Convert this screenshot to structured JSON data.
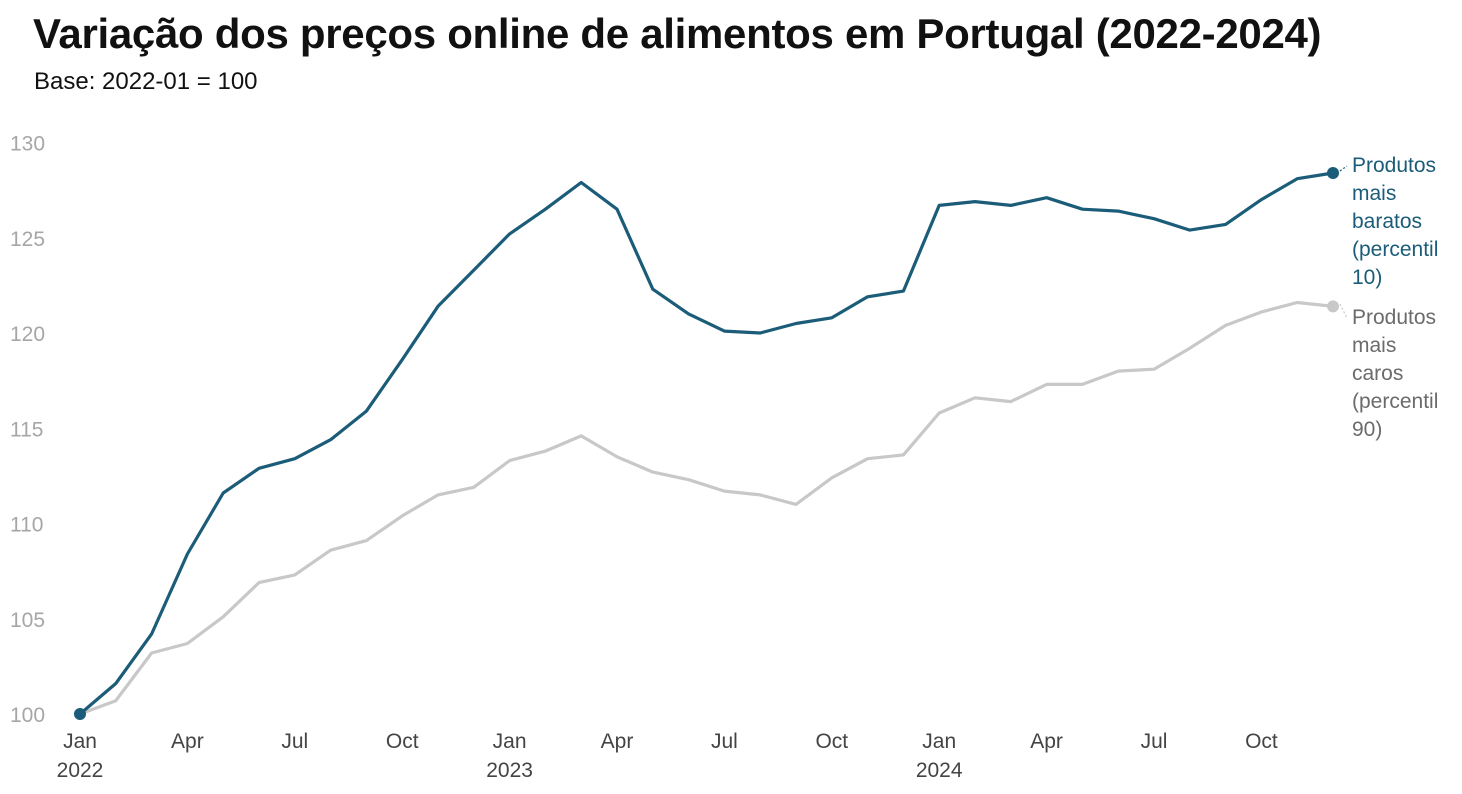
{
  "chart_data": {
    "type": "line",
    "title": "Variação dos preços online de alimentos em Portugal (2022-2024)",
    "subtitle": "Base: 2022-01 = 100",
    "xlabel": "",
    "ylabel": "",
    "ylim": [
      100,
      130
    ],
    "yticks": [
      "100",
      "105",
      "110",
      "115",
      "120",
      "125",
      "130"
    ],
    "x": [
      "2022-01",
      "2022-02",
      "2022-03",
      "2022-04",
      "2022-05",
      "2022-06",
      "2022-07",
      "2022-08",
      "2022-09",
      "2022-10",
      "2022-11",
      "2022-12",
      "2023-01",
      "2023-02",
      "2023-03",
      "2023-04",
      "2023-05",
      "2023-06",
      "2023-07",
      "2023-08",
      "2023-09",
      "2023-10",
      "2023-11",
      "2023-12",
      "2024-01",
      "2024-02",
      "2024-03",
      "2024-04",
      "2024-05",
      "2024-06",
      "2024-07",
      "2024-08",
      "2024-09",
      "2024-10",
      "2024-11",
      "2024-12"
    ],
    "xticks": [
      {
        "index": 0,
        "month": "Jan",
        "year": "2022"
      },
      {
        "index": 3,
        "month": "Apr",
        "year": ""
      },
      {
        "index": 6,
        "month": "Jul",
        "year": ""
      },
      {
        "index": 9,
        "month": "Oct",
        "year": ""
      },
      {
        "index": 12,
        "month": "Jan",
        "year": "2023"
      },
      {
        "index": 15,
        "month": "Apr",
        "year": ""
      },
      {
        "index": 18,
        "month": "Jul",
        "year": ""
      },
      {
        "index": 21,
        "month": "Oct",
        "year": ""
      },
      {
        "index": 24,
        "month": "Jan",
        "year": "2024"
      },
      {
        "index": 27,
        "month": "Apr",
        "year": ""
      },
      {
        "index": 30,
        "month": "Jul",
        "year": ""
      },
      {
        "index": 33,
        "month": "Oct",
        "year": ""
      }
    ],
    "series": [
      {
        "name": "Produtos mais caros (percentil 90)",
        "label_lines": [
          "Produtos",
          "mais",
          "caros",
          "(percentil",
          "90)"
        ],
        "color": "#c8c8c8",
        "values": [
          100.0,
          100.7,
          103.2,
          103.7,
          105.1,
          106.9,
          107.3,
          108.6,
          109.1,
          110.4,
          111.5,
          111.9,
          113.3,
          113.8,
          114.6,
          113.5,
          112.7,
          112.3,
          111.7,
          111.5,
          111.0,
          112.4,
          113.4,
          113.6,
          115.8,
          116.6,
          116.4,
          117.3,
          117.3,
          118.0,
          118.1,
          119.2,
          120.4,
          121.1,
          121.6,
          121.4
        ]
      },
      {
        "name": "Produtos mais baratos (percentil 10)",
        "label_lines": [
          "Produtos",
          "mais",
          "baratos",
          "(percentil",
          "10)"
        ],
        "color": "#1b5c78",
        "values": [
          100.0,
          101.6,
          104.2,
          108.4,
          111.6,
          112.9,
          113.4,
          114.4,
          115.9,
          118.6,
          121.4,
          123.3,
          125.2,
          126.5,
          127.9,
          126.5,
          122.3,
          121.0,
          120.1,
          120.0,
          120.5,
          120.8,
          121.9,
          122.2,
          126.7,
          126.9,
          126.7,
          127.1,
          126.5,
          126.4,
          126.0,
          125.4,
          125.7,
          127.0,
          128.1,
          128.4
        ]
      }
    ]
  }
}
